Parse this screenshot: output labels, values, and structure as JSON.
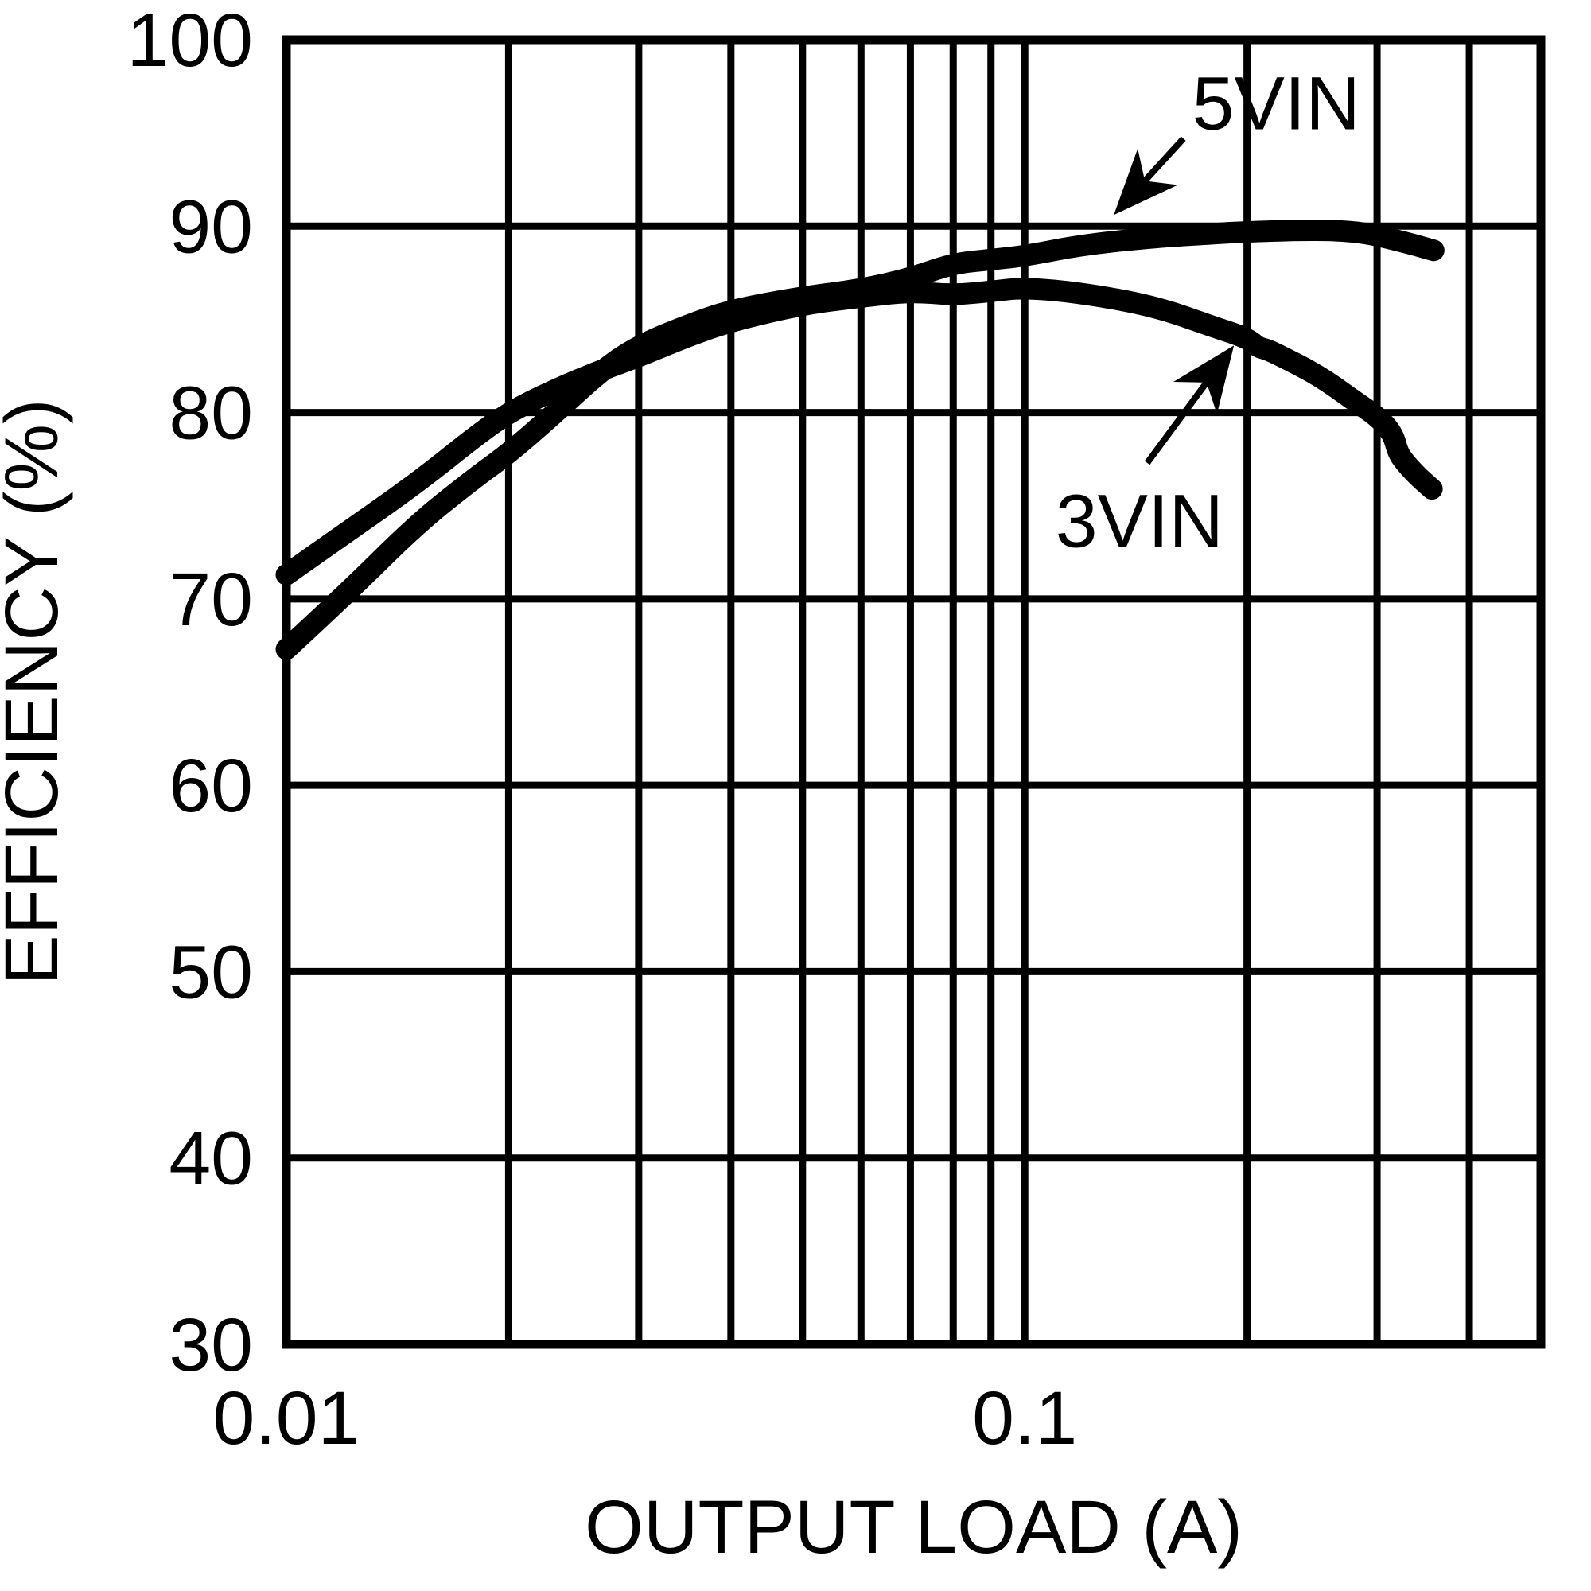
{
  "page": {
    "background": "#ffffff",
    "ink_color": "#000000"
  },
  "chart_data": {
    "type": "line",
    "title": "",
    "xlabel": "OUTPUT LOAD (A)",
    "ylabel": "EFFICIENCY (%)",
    "x_scale": "log",
    "xlim": [
      0.01,
      0.5
    ],
    "ylim": [
      30,
      100
    ],
    "grid": true,
    "line_color": "#000000",
    "x_ticks": [
      {
        "value": 0.01,
        "label": "0.01"
      },
      {
        "value": 0.1,
        "label": "0.1"
      }
    ],
    "y_ticks": [
      {
        "value": 100,
        "label": "100"
      },
      {
        "value": 90,
        "label": "90"
      },
      {
        "value": 80,
        "label": "80"
      },
      {
        "value": 70,
        "label": "70"
      },
      {
        "value": 60,
        "label": "60"
      },
      {
        "value": 50,
        "label": "50"
      },
      {
        "value": 40,
        "label": "40"
      },
      {
        "value": 30,
        "label": "30"
      }
    ],
    "x_gridlines": [
      0.02,
      0.03,
      0.04,
      0.05,
      0.06,
      0.07,
      0.08,
      0.09,
      0.1,
      0.2,
      0.3,
      0.4
    ],
    "y_gridlines": [
      40,
      50,
      60,
      70,
      80,
      90
    ],
    "series": [
      {
        "name": "5VIN",
        "points": [
          [
            0.01,
            67.3
          ],
          [
            0.012,
            70.2
          ],
          [
            0.015,
            74.0
          ],
          [
            0.018,
            76.5
          ],
          [
            0.02,
            77.8
          ],
          [
            0.023,
            79.9
          ],
          [
            0.0268,
            82.3
          ],
          [
            0.03,
            83.6
          ],
          [
            0.035,
            84.7
          ],
          [
            0.04,
            85.5
          ],
          [
            0.05,
            86.2
          ],
          [
            0.06,
            86.6
          ],
          [
            0.07,
            87.2
          ],
          [
            0.08,
            88.0
          ],
          [
            0.09,
            88.2
          ],
          [
            0.1,
            88.4
          ],
          [
            0.12,
            89.0
          ],
          [
            0.15,
            89.4
          ],
          [
            0.18,
            89.6
          ],
          [
            0.2,
            89.7
          ],
          [
            0.25,
            89.8
          ],
          [
            0.28,
            89.7
          ],
          [
            0.3,
            89.5
          ],
          [
            0.33,
            89.1
          ],
          [
            0.358,
            88.7
          ]
        ]
      },
      {
        "name": "3VIN",
        "points": [
          [
            0.01,
            71.3
          ],
          [
            0.012,
            73.5
          ],
          [
            0.015,
            76.2
          ],
          [
            0.018,
            78.7
          ],
          [
            0.02,
            80.0
          ],
          [
            0.023,
            81.2
          ],
          [
            0.0268,
            82.3
          ],
          [
            0.03,
            83.0
          ],
          [
            0.035,
            84.1
          ],
          [
            0.04,
            84.9
          ],
          [
            0.05,
            85.8
          ],
          [
            0.06,
            86.2
          ],
          [
            0.07,
            86.5
          ],
          [
            0.08,
            86.3
          ],
          [
            0.09,
            86.5
          ],
          [
            0.1,
            86.7
          ],
          [
            0.12,
            86.4
          ],
          [
            0.15,
            85.7
          ],
          [
            0.18,
            84.6
          ],
          [
            0.2,
            84.0
          ],
          [
            0.207,
            83.5
          ],
          [
            0.212,
            83.4
          ],
          [
            0.218,
            83.2
          ],
          [
            0.25,
            82.0
          ],
          [
            0.28,
            80.6
          ],
          [
            0.3,
            79.8
          ],
          [
            0.315,
            78.9
          ],
          [
            0.32,
            77.9
          ],
          [
            0.326,
            77.4
          ],
          [
            0.34,
            76.6
          ],
          [
            0.356,
            75.9
          ]
        ]
      }
    ],
    "annotations": [
      {
        "label": "5VIN",
        "text_at": [
          0.219,
          96.6
        ],
        "arrow_from": [
          0.164,
          94.7
        ],
        "arrow_to": [
          0.132,
          90.6
        ]
      },
      {
        "label": "3VIN",
        "text_at": [
          0.143,
          74.2
        ],
        "arrow_from": [
          0.1465,
          77.3
        ],
        "arrow_to": [
          0.192,
          83.6
        ]
      }
    ],
    "legend_position": "inline-annotations"
  }
}
